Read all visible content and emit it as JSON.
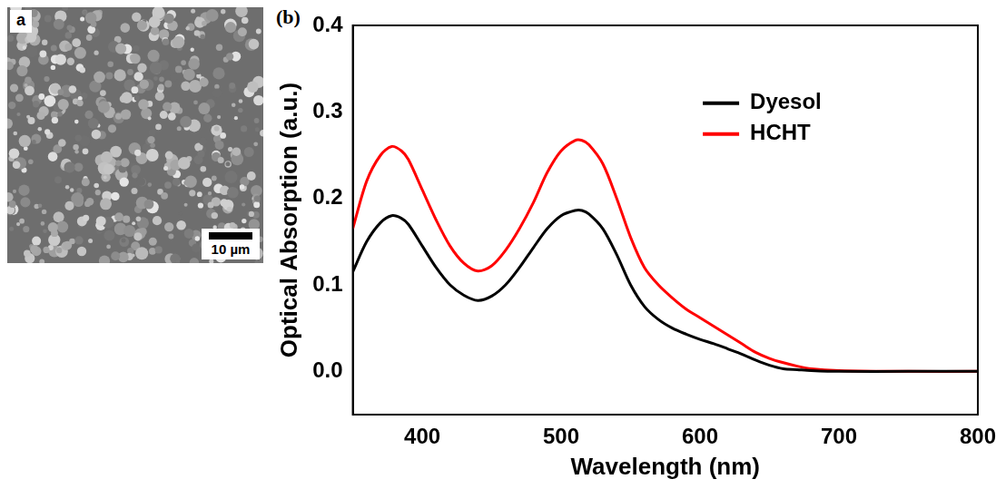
{
  "panel_a": {
    "label": "a",
    "scale_bar": "10 µm"
  },
  "panel_b": {
    "label": "(b)"
  },
  "chart_data": {
    "type": "line",
    "x_label": "Wavelength (nm)",
    "y_label": "Optical Absorption (a.u.)",
    "x": [
      350,
      360,
      370,
      378,
      385,
      390,
      400,
      410,
      420,
      430,
      440,
      450,
      460,
      470,
      480,
      490,
      500,
      510,
      515,
      520,
      530,
      540,
      550,
      560,
      570,
      580,
      590,
      600,
      610,
      620,
      630,
      640,
      650,
      660,
      670,
      680,
      700,
      750,
      800
    ],
    "series": [
      {
        "name": "Dyesol",
        "color": "#000000",
        "values": [
          0.115,
          0.15,
          0.172,
          0.18,
          0.177,
          0.17,
          0.145,
          0.12,
          0.1,
          0.088,
          0.082,
          0.087,
          0.1,
          0.12,
          0.143,
          0.165,
          0.18,
          0.186,
          0.186,
          0.182,
          0.165,
          0.135,
          0.1,
          0.075,
          0.06,
          0.05,
          0.043,
          0.037,
          0.032,
          0.026,
          0.02,
          0.013,
          0.007,
          0.003,
          0.002,
          0.001,
          0,
          0,
          0
        ]
      },
      {
        "name": "HCHT",
        "color": "#ff0000",
        "values": [
          0.165,
          0.22,
          0.25,
          0.26,
          0.255,
          0.245,
          0.21,
          0.175,
          0.145,
          0.125,
          0.116,
          0.122,
          0.14,
          0.165,
          0.195,
          0.23,
          0.255,
          0.267,
          0.267,
          0.262,
          0.24,
          0.2,
          0.155,
          0.12,
          0.1,
          0.085,
          0.072,
          0.062,
          0.052,
          0.042,
          0.032,
          0.022,
          0.015,
          0.01,
          0.006,
          0.003,
          0.001,
          0,
          0
        ]
      }
    ],
    "xlim": [
      350,
      800
    ],
    "xticks": [
      400,
      500,
      600,
      700,
      800
    ],
    "ylim": [
      -0.05,
      0.4
    ],
    "yticks": [
      {
        "value": 0,
        "label": "0.0"
      },
      0.1,
      0.2,
      0.3,
      0.4
    ],
    "grid": false,
    "legend": "upper right"
  }
}
